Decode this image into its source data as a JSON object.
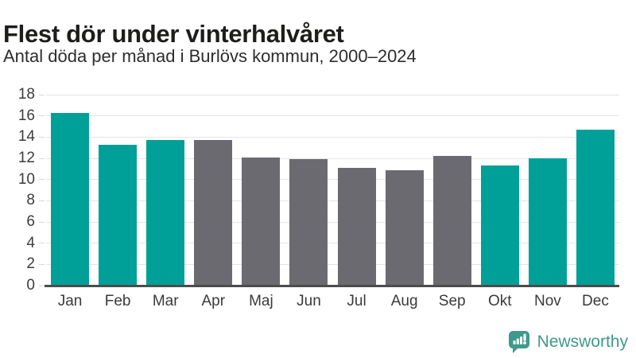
{
  "header": {
    "title": "Flest dör under vinterhalvåret",
    "subtitle": "Antal döda per månad i Burlövs kommun, 2000–2024"
  },
  "chart_data": {
    "type": "bar",
    "title": "Flest dör under vinterhalvåret",
    "subtitle": "Antal döda per månad i Burlövs kommun, 2000–2024",
    "categories": [
      "Jan",
      "Feb",
      "Mar",
      "Apr",
      "Maj",
      "Jun",
      "Jul",
      "Aug",
      "Sep",
      "Okt",
      "Nov",
      "Dec"
    ],
    "values": [
      16.3,
      13.3,
      13.7,
      13.7,
      12.1,
      11.9,
      11.1,
      10.9,
      12.2,
      11.3,
      12.0,
      14.7
    ],
    "bar_colors": [
      "#00A099",
      "#00A099",
      "#00A099",
      "#6C6A71",
      "#6C6A71",
      "#6C6A71",
      "#6C6A71",
      "#6C6A71",
      "#6C6A71",
      "#00A099",
      "#00A099",
      "#00A099"
    ],
    "highlight_color": "#00A099",
    "base_color": "#6C6A71",
    "xlabel": "",
    "ylabel": "",
    "ylim": [
      0,
      18
    ],
    "yticks": [
      0,
      2,
      4,
      6,
      8,
      10,
      12,
      14,
      16,
      18
    ],
    "grid": true,
    "grid_color": "#E4E4E4",
    "axis_line_color": "#4C4C4C",
    "tick_text_color": "#3C3C3C",
    "legend": "none"
  },
  "footer": {
    "brand": "Newsworthy",
    "brand_color": "#3E9A8B",
    "logo_icon": "bar-chart-speech-bubble-icon"
  }
}
